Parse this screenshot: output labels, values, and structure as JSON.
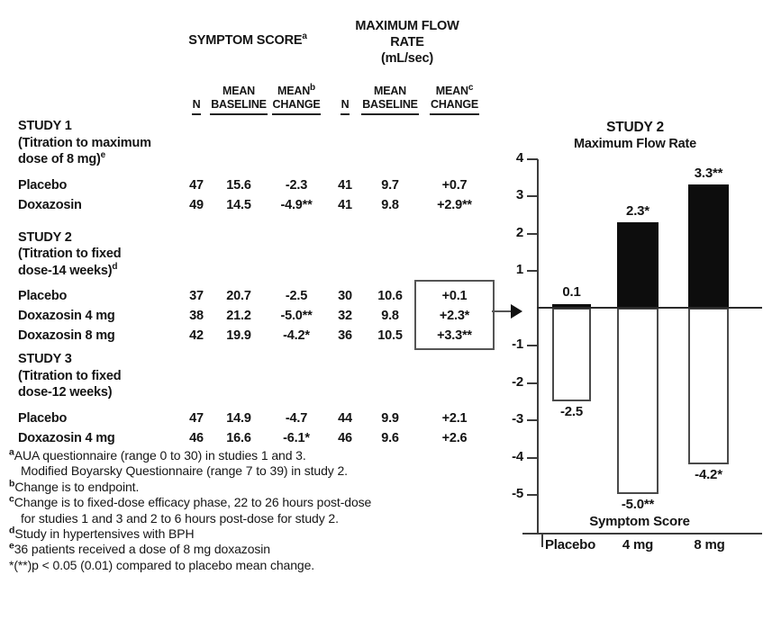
{
  "table": {
    "col_headers": {
      "symptom_score": {
        "text": "SYMPTOM SCORE",
        "sup": "a"
      },
      "max_flow": {
        "line1": "MAXIMUM FLOW",
        "line2": "RATE",
        "line3": "(mL/sec)"
      },
      "sub": {
        "n1": "N",
        "b1_top": "MEAN",
        "b1_bot": "BASELINE",
        "c1_top": "MEAN",
        "c1_sup": "b",
        "c1_bot": "CHANGE",
        "n2": "N",
        "b2_top": "MEAN",
        "b2_bot": "BASELINE",
        "c2_top": "MEAN",
        "c2_sup": "c",
        "c2_bot": "CHANGE"
      }
    },
    "sections": [
      {
        "title": "STUDY 1",
        "sub1": "(Titration to maximum",
        "sub2": "dose of 8 mg)",
        "sub2_sup": "e",
        "rows": [
          {
            "label": "Placebo",
            "n1": "47",
            "b1": "15.6",
            "c1": "-2.3",
            "n2": "41",
            "b2": "9.7",
            "c2": "+0.7"
          },
          {
            "label": "Doxazosin",
            "n1": "49",
            "b1": "14.5",
            "c1": "-4.9**",
            "n2": "41",
            "b2": "9.8",
            "c2": "+2.9**"
          }
        ]
      },
      {
        "title": "STUDY 2",
        "sub1": "(Titration to fixed",
        "sub2": "dose-14 weeks)",
        "sub2_sup": "d",
        "rows": [
          {
            "label": "Placebo",
            "n1": "37",
            "b1": "20.7",
            "c1": "-2.5",
            "n2": "30",
            "b2": "10.6",
            "c2": "+0.1"
          },
          {
            "label": "Doxazosin 4 mg",
            "n1": "38",
            "b1": "21.2",
            "c1": "-5.0**",
            "n2": "32",
            "b2": "9.8",
            "c2": "+2.3*"
          },
          {
            "label": "Doxazosin 8 mg",
            "n1": "42",
            "b1": "19.9",
            "c1": "-4.2*",
            "n2": "36",
            "b2": "10.5",
            "c2": "+3.3**"
          }
        ]
      },
      {
        "title": "STUDY 3",
        "sub1": "(Titration to fixed",
        "sub2": "dose-12 weeks)",
        "sub2_sup": "",
        "rows": [
          {
            "label": "Placebo",
            "n1": "47",
            "b1": "14.9",
            "c1": "-4.7",
            "n2": "44",
            "b2": "9.9",
            "c2": "+2.1"
          },
          {
            "label": "Doxazosin 4 mg",
            "n1": "46",
            "b1": "16.6",
            "c1": "-6.1*",
            "n2": "46",
            "b2": "9.6",
            "c2": "+2.6"
          }
        ]
      }
    ]
  },
  "footnotes": [
    {
      "sup": "a",
      "text": "AUA questionnaire (range 0 to 30) in studies 1 and 3."
    },
    {
      "sup": "",
      "text": "Modified Boyarsky Questionnaire (range 7 to 39) in study 2."
    },
    {
      "sup": "b",
      "text": "Change is to endpoint."
    },
    {
      "sup": "c",
      "text": "Change is to fixed-dose efficacy phase, 22 to 26 hours post-dose"
    },
    {
      "sup": "",
      "text": "for studies 1 and 3 and 2 to 6 hours post-dose for study 2."
    },
    {
      "sup": "d",
      "text": "Study in hypertensives with BPH"
    },
    {
      "sup": "e",
      "text": "36 patients received a dose of 8 mg doxazosin"
    },
    {
      "sup": "",
      "text": "*(**)p < 0.05 (0.01) compared to placebo mean change."
    }
  ],
  "chart_data": {
    "type": "bar",
    "title": "STUDY 2",
    "subtitle": "Maximum Flow Rate",
    "categories": [
      "Placebo",
      "4 mg",
      "8 mg"
    ],
    "series": [
      {
        "name": "Maximum Flow Rate",
        "color": "#0d0d0d",
        "fill": "solid",
        "values": [
          0.1,
          2.3,
          3.3
        ],
        "labels": [
          "0.1",
          "2.3*",
          "3.3**"
        ]
      },
      {
        "name": "Symptom Score",
        "color": "#ffffff",
        "fill": "outline",
        "values": [
          -2.5,
          -5.0,
          -4.2
        ],
        "labels": [
          "-2.5",
          "-5.0**",
          "-4.2*"
        ]
      }
    ],
    "x_axis_label": "Symptom Score",
    "ylim": [
      -5.5,
      4
    ],
    "yticks": [
      "4",
      "3",
      "2",
      "1",
      "-1",
      "-2",
      "-3",
      "-4",
      "-5"
    ],
    "baseline": 0,
    "grid": false,
    "legend": "none"
  }
}
